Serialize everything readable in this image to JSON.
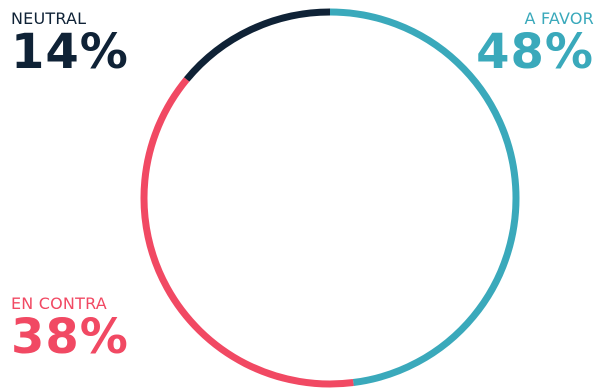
{
  "chart_data": {
    "type": "pie",
    "style": "donut-ring",
    "title": "",
    "categories": [
      "A FAVOR",
      "EN CONTRA",
      "NEUTRAL"
    ],
    "values": [
      48,
      38,
      14
    ],
    "value_labels": [
      "48%",
      "38%",
      "14%"
    ],
    "colors": [
      "#3aa9bb",
      "#f14963",
      "#0f2236"
    ],
    "start_angle": "top",
    "direction": "clockwise"
  },
  "labels": {
    "favor": {
      "category": "A FAVOR",
      "percent": "48%"
    },
    "contra": {
      "category": "EN CONTRA",
      "percent": "38%"
    },
    "neutral": {
      "category": "NEUTRAL",
      "percent": "14%"
    }
  }
}
